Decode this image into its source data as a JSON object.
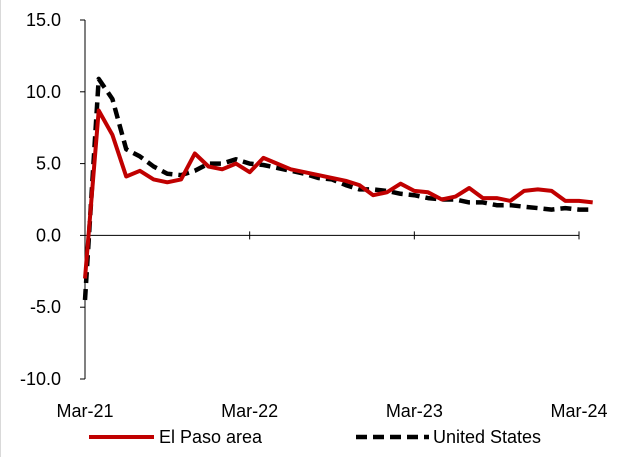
{
  "chart_data": {
    "type": "line",
    "title": "",
    "xlabel": "",
    "ylabel": "",
    "ylim": [
      -10,
      15
    ],
    "y_ticks": [
      "15.0",
      "10.0",
      "5.0",
      "0.0",
      "-5.0",
      "-10.0"
    ],
    "x_ticks": [
      "Mar-21",
      "Mar-22",
      "Mar-23",
      "Mar-24"
    ],
    "x_start": "2021-03",
    "x_end": "2024-03",
    "grid": false,
    "legend_position": "bottom",
    "series": [
      {
        "name": "El Paso area",
        "color": "#c00000",
        "style": "solid",
        "values": [
          -3.0,
          8.7,
          7.0,
          4.1,
          4.5,
          3.9,
          3.7,
          3.9,
          5.7,
          4.8,
          4.6,
          5.0,
          4.4,
          5.4,
          5.0,
          4.6,
          4.4,
          4.2,
          4.0,
          3.8,
          3.5,
          2.8,
          3.0,
          3.6,
          3.1,
          3.0,
          2.5,
          2.7,
          3.3,
          2.6,
          2.6,
          2.4,
          3.1,
          3.2,
          3.1,
          2.4,
          2.4,
          2.3
        ]
      },
      {
        "name": "United States",
        "color": "#000000",
        "style": "dashed",
        "values": [
          -4.5,
          10.9,
          9.5,
          6.0,
          5.5,
          4.8,
          4.3,
          4.2,
          4.5,
          5.0,
          5.0,
          5.3,
          5.0,
          4.9,
          4.7,
          4.5,
          4.3,
          4.0,
          3.9,
          3.5,
          3.2,
          3.2,
          3.1,
          2.9,
          2.8,
          2.6,
          2.5,
          2.5,
          2.3,
          2.3,
          2.1,
          2.1,
          2.0,
          1.9,
          1.8,
          1.9,
          1.8,
          1.8
        ]
      }
    ]
  }
}
